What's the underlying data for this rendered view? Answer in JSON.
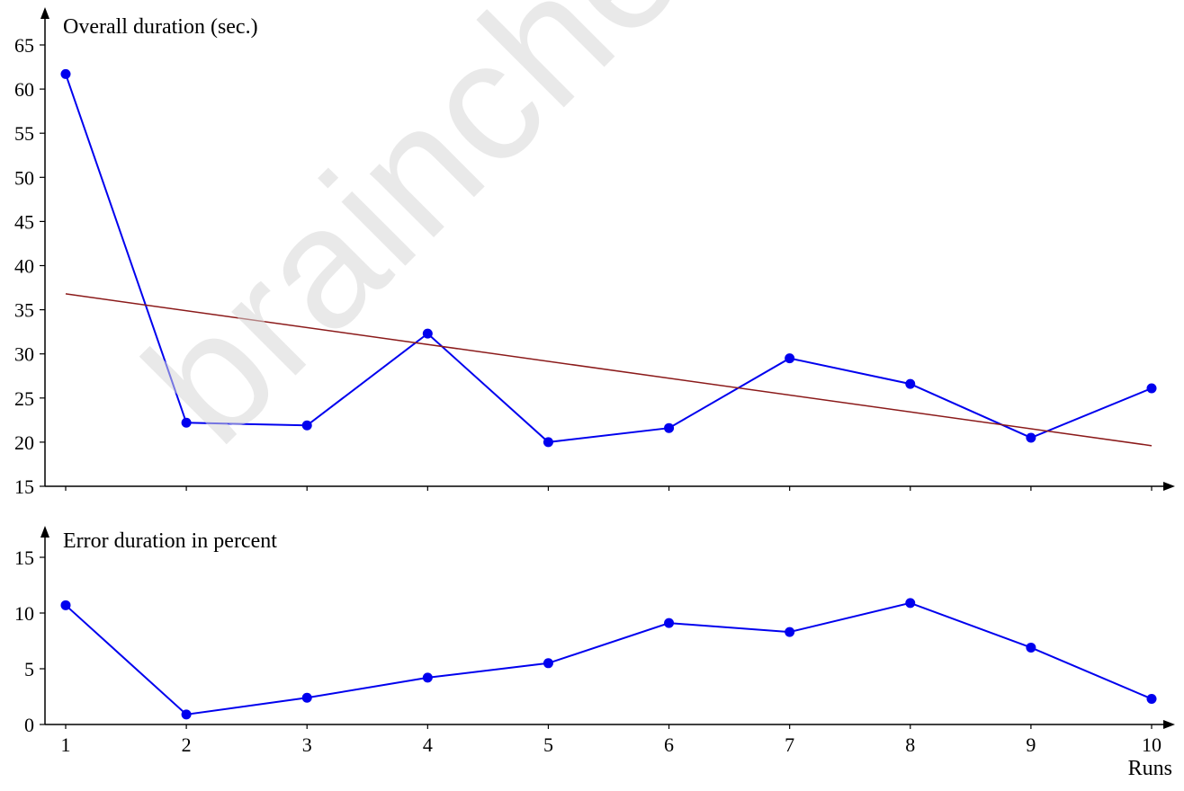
{
  "watermark": "braincheck.ir",
  "chart_data": [
    {
      "type": "line",
      "title": "Overall duration (sec.)",
      "x": [
        1,
        2,
        3,
        4,
        5,
        6,
        7,
        8,
        9,
        10
      ],
      "series": [
        {
          "values": [
            61.7,
            22.2,
            21.9,
            32.3,
            20.0,
            21.6,
            29.5,
            26.6,
            20.5,
            26.1
          ],
          "color": "#0000ee",
          "markers": true
        },
        {
          "type": "trend",
          "values": [
            36.8,
            19.6
          ],
          "x": [
            1,
            10
          ],
          "color": "#8b1a1a",
          "markers": false
        }
      ],
      "ylim": [
        15,
        65
      ],
      "yticks": [
        15,
        20,
        25,
        30,
        35,
        40,
        45,
        50,
        55,
        60,
        65
      ],
      "xlim": [
        1,
        10
      ]
    },
    {
      "type": "line",
      "title": "Error duration in percent",
      "xlabel": "Runs",
      "x": [
        1,
        2,
        3,
        4,
        5,
        6,
        7,
        8,
        9,
        10
      ],
      "series": [
        {
          "values": [
            10.7,
            0.9,
            2.4,
            4.2,
            5.5,
            9.1,
            8.3,
            10.9,
            6.9,
            2.3
          ],
          "color": "#0000ee",
          "markers": true
        }
      ],
      "ylim": [
        0,
        15
      ],
      "yticks": [
        0,
        5,
        10,
        15
      ],
      "xticks": [
        "1",
        "2",
        "3",
        "4",
        "5",
        "6",
        "7",
        "8",
        "9",
        "10"
      ]
    }
  ]
}
